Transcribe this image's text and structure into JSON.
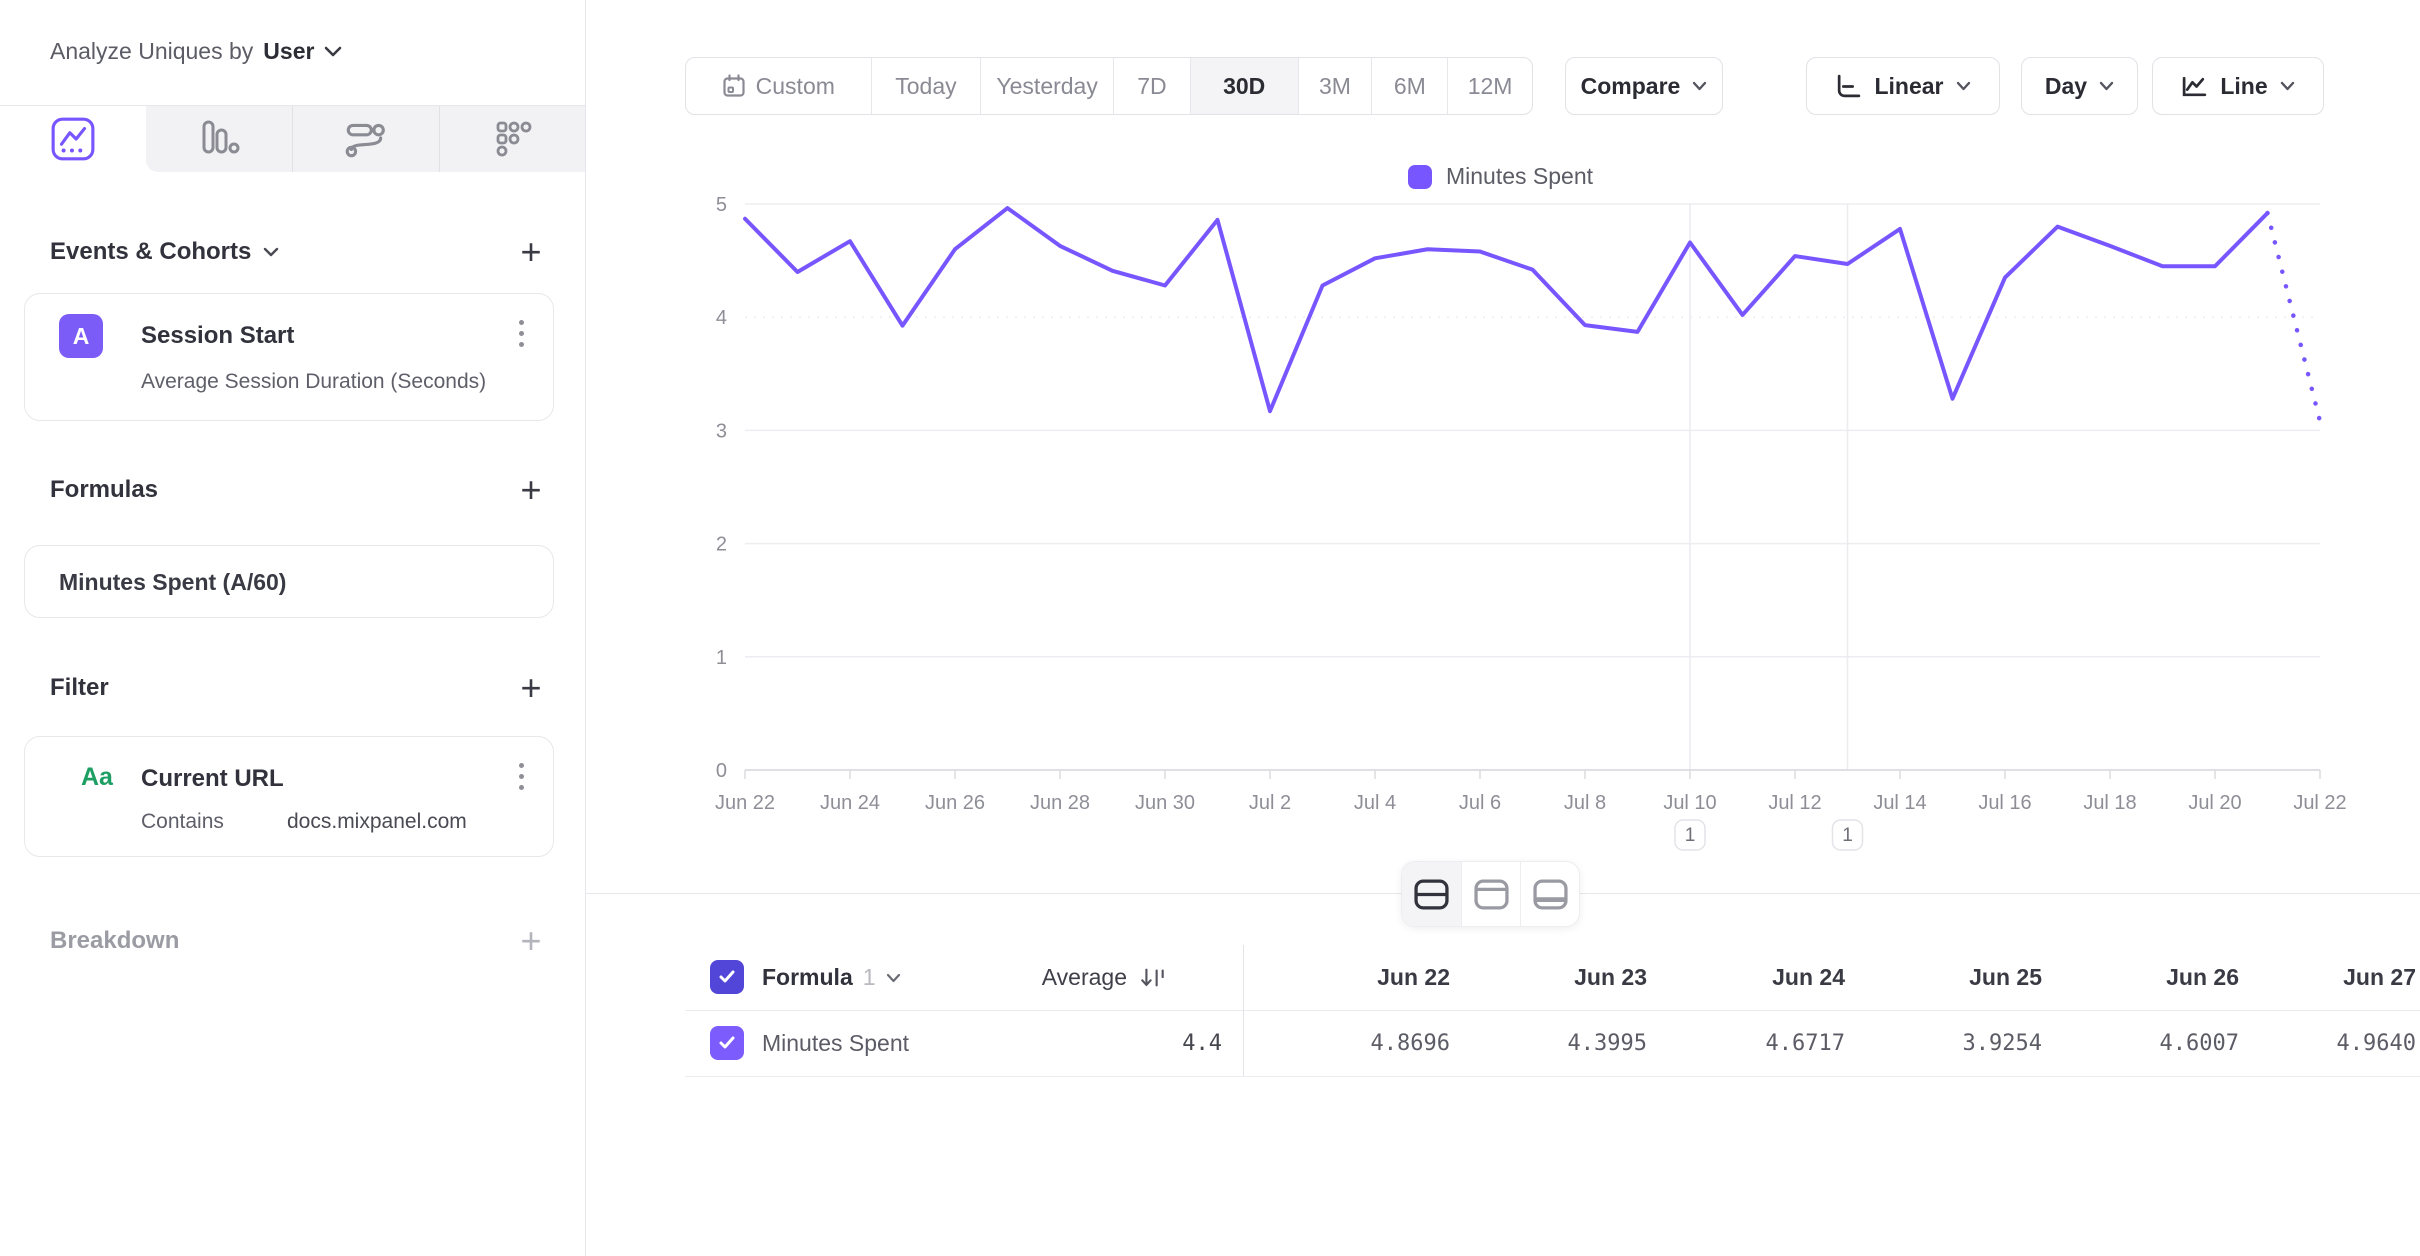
{
  "sidebar": {
    "analyze_label": "Analyze Uniques by",
    "analyze_value": "User",
    "add_label": "+",
    "tabs": [
      "insights",
      "bar",
      "flows",
      "retention"
    ],
    "active_tab": "insights",
    "events_title": "Events & Cohorts",
    "event_card": {
      "badge": "A",
      "title": "Session Start",
      "subtitle": "Average Session Duration (Seconds)"
    },
    "formulas_title": "Formulas",
    "formula_card": {
      "title": "Minutes Spent (A/60)"
    },
    "filter_title": "Filter",
    "filter_card": {
      "icon": "Aa",
      "title": "Current URL",
      "operator": "Contains",
      "value": "docs.mixpanel.com"
    },
    "breakdown_title": "Breakdown"
  },
  "toolbar": {
    "ranges": [
      "Custom",
      "Today",
      "Yesterday",
      "7D",
      "30D",
      "3M",
      "6M",
      "12M"
    ],
    "range_widths": [
      185,
      110,
      133,
      77,
      108,
      74,
      76,
      85
    ],
    "active_range": "30D",
    "compare_label": "Compare",
    "scale_label": "Linear",
    "granularity_label": "Day",
    "chart_type_label": "Line"
  },
  "legend": {
    "series": "Minutes Spent",
    "color": "#7856ff"
  },
  "chart_data": {
    "type": "line",
    "title": "",
    "xlabel": "",
    "ylabel": "",
    "ylim": [
      0,
      5
    ],
    "y_ticks": [
      0,
      1,
      2,
      3,
      4,
      5
    ],
    "grid": "horizontal",
    "legend_position": "top",
    "categories": [
      "Jun 22",
      "Jun 23",
      "Jun 24",
      "Jun 25",
      "Jun 26",
      "Jun 27",
      "Jun 28",
      "Jun 29",
      "Jun 30",
      "Jul 1",
      "Jul 2",
      "Jul 3",
      "Jul 4",
      "Jul 5",
      "Jul 6",
      "Jul 7",
      "Jul 8",
      "Jul 9",
      "Jul 10",
      "Jul 11",
      "Jul 12",
      "Jul 13",
      "Jul 14",
      "Jul 15",
      "Jul 16",
      "Jul 17",
      "Jul 18",
      "Jul 19",
      "Jul 20",
      "Jul 21",
      "Jul 22"
    ],
    "x_tick_labels": [
      "Jun 22",
      "Jun 24",
      "Jun 26",
      "Jun 28",
      "Jun 30",
      "Jul 2",
      "Jul 4",
      "Jul 6",
      "Jul 8",
      "Jul 10",
      "Jul 12",
      "Jul 14",
      "Jul 16",
      "Jul 18",
      "Jul 20",
      "Jul 22"
    ],
    "series": [
      {
        "name": "Minutes Spent",
        "color": "#7856ff",
        "values": [
          4.8696,
          4.3995,
          4.6717,
          3.9254,
          4.6007,
          4.964,
          4.63,
          4.41,
          4.28,
          4.86,
          3.17,
          4.28,
          4.52,
          4.6,
          4.58,
          4.42,
          3.93,
          3.87,
          4.66,
          4.02,
          4.54,
          4.47,
          4.78,
          3.28,
          4.35,
          4.8,
          4.63,
          4.45,
          4.45,
          4.92,
          3.08
        ],
        "dashed_from_index": 29
      }
    ],
    "annotations": [
      {
        "label": "1",
        "category": "Jul 10"
      },
      {
        "label": "1",
        "category": "Jul 13"
      }
    ]
  },
  "table": {
    "group_label": "Formula",
    "group_number": "1",
    "average_label": "Average",
    "columns": [
      "Jun 22",
      "Jun 23",
      "Jun 24",
      "Jun 25",
      "Jun 26",
      "Jun 27"
    ],
    "row": {
      "label": "Minutes Spent",
      "average": "4.4",
      "values": [
        "4.8696",
        "4.3995",
        "4.6717",
        "3.9254",
        "4.6007",
        "4.9640"
      ]
    }
  },
  "colors": {
    "accent": "#7856ff",
    "header_checkbox": "#5246d9",
    "row_checkbox": "#7c5cfc",
    "badge_purple": "#7b5cf6",
    "green_text": "#1d9e63",
    "border": "#e7e7eb",
    "gray_text": "#8e8e97",
    "dark_text": "#32323c"
  }
}
